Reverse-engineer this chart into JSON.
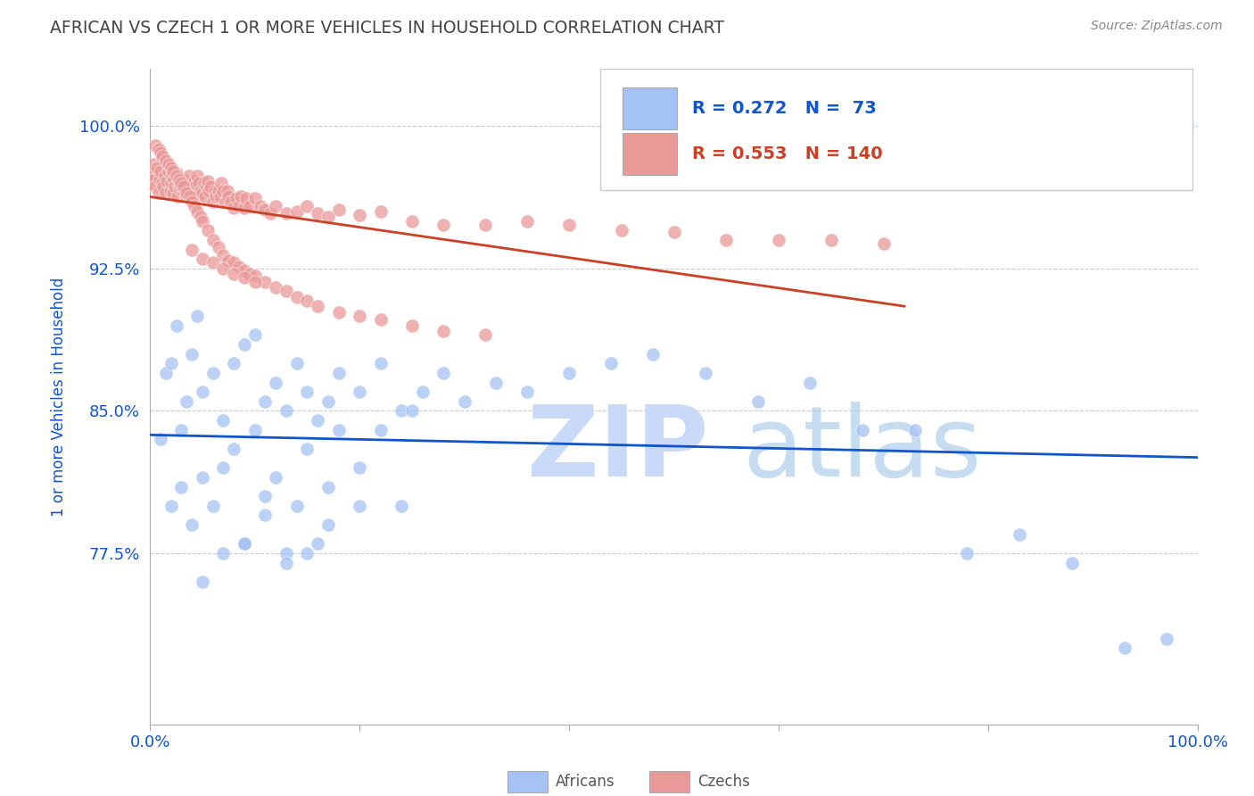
{
  "title": "AFRICAN VS CZECH 1 OR MORE VEHICLES IN HOUSEHOLD CORRELATION CHART",
  "source": "Source: ZipAtlas.com",
  "ylabel": "1 or more Vehicles in Household",
  "xlim": [
    0.0,
    1.0
  ],
  "ylim": [
    0.685,
    1.03
  ],
  "yticks": [
    0.775,
    0.85,
    0.925,
    1.0
  ],
  "ytick_labels": [
    "77.5%",
    "85.0%",
    "92.5%",
    "100.0%"
  ],
  "african_color": "#a4c2f4",
  "czech_color": "#ea9999",
  "african_R": 0.272,
  "african_N": 73,
  "czech_R": 0.553,
  "czech_N": 140,
  "african_line_color": "#1155cc",
  "czech_line_color": "#cc4125",
  "watermark_zip_color": "#c9daf8",
  "watermark_atlas_color": "#9fc5e8",
  "background_color": "#ffffff",
  "title_color": "#434343",
  "axis_label_color": "#1155cc",
  "tick_color": "#1155cc",
  "grid_color": "#cccccc",
  "africans_x": [
    0.01,
    0.015,
    0.02,
    0.025,
    0.03,
    0.035,
    0.04,
    0.045,
    0.05,
    0.06,
    0.07,
    0.08,
    0.09,
    0.1,
    0.11,
    0.12,
    0.13,
    0.14,
    0.15,
    0.16,
    0.17,
    0.18,
    0.2,
    0.22,
    0.24,
    0.26,
    0.28,
    0.3,
    0.33,
    0.36,
    0.4,
    0.44,
    0.48,
    0.53,
    0.58,
    0.63,
    0.68,
    0.73,
    0.78,
    0.83,
    0.88,
    0.93,
    0.97,
    0.99,
    0.02,
    0.03,
    0.04,
    0.05,
    0.06,
    0.07,
    0.08,
    0.09,
    0.1,
    0.11,
    0.12,
    0.13,
    0.14,
    0.15,
    0.16,
    0.17,
    0.18,
    0.2,
    0.22,
    0.24,
    0.05,
    0.07,
    0.09,
    0.11,
    0.13,
    0.15,
    0.17,
    0.2,
    0.25
  ],
  "africans_y": [
    0.835,
    0.87,
    0.875,
    0.895,
    0.84,
    0.855,
    0.88,
    0.9,
    0.86,
    0.87,
    0.845,
    0.875,
    0.885,
    0.89,
    0.855,
    0.865,
    0.85,
    0.875,
    0.86,
    0.845,
    0.855,
    0.87,
    0.86,
    0.875,
    0.85,
    0.86,
    0.87,
    0.855,
    0.865,
    0.86,
    0.87,
    0.875,
    0.88,
    0.87,
    0.855,
    0.865,
    0.84,
    0.84,
    0.775,
    0.785,
    0.77,
    0.725,
    0.73,
    1.0,
    0.8,
    0.81,
    0.79,
    0.815,
    0.8,
    0.82,
    0.83,
    0.78,
    0.84,
    0.805,
    0.815,
    0.775,
    0.8,
    0.83,
    0.78,
    0.81,
    0.84,
    0.82,
    0.84,
    0.8,
    0.76,
    0.775,
    0.78,
    0.795,
    0.77,
    0.775,
    0.79,
    0.8,
    0.85
  ],
  "czechs_x": [
    0.001,
    0.002,
    0.003,
    0.004,
    0.005,
    0.007,
    0.008,
    0.009,
    0.01,
    0.012,
    0.013,
    0.014,
    0.015,
    0.016,
    0.018,
    0.019,
    0.02,
    0.021,
    0.022,
    0.023,
    0.024,
    0.025,
    0.026,
    0.027,
    0.028,
    0.03,
    0.031,
    0.032,
    0.033,
    0.034,
    0.035,
    0.036,
    0.037,
    0.038,
    0.04,
    0.041,
    0.042,
    0.043,
    0.044,
    0.045,
    0.046,
    0.047,
    0.048,
    0.05,
    0.052,
    0.053,
    0.054,
    0.055,
    0.056,
    0.058,
    0.06,
    0.062,
    0.063,
    0.065,
    0.067,
    0.068,
    0.07,
    0.072,
    0.074,
    0.075,
    0.077,
    0.08,
    0.082,
    0.085,
    0.087,
    0.09,
    0.092,
    0.095,
    0.1,
    0.105,
    0.11,
    0.115,
    0.12,
    0.13,
    0.14,
    0.15,
    0.16,
    0.17,
    0.18,
    0.2,
    0.22,
    0.25,
    0.28,
    0.32,
    0.36,
    0.4,
    0.45,
    0.5,
    0.55,
    0.6,
    0.65,
    0.7,
    0.005,
    0.008,
    0.01,
    0.012,
    0.015,
    0.018,
    0.02,
    0.022,
    0.025,
    0.028,
    0.03,
    0.032,
    0.035,
    0.038,
    0.04,
    0.042,
    0.045,
    0.048,
    0.05,
    0.055,
    0.06,
    0.065,
    0.07,
    0.075,
    0.08,
    0.085,
    0.09,
    0.095,
    0.1,
    0.11,
    0.12,
    0.13,
    0.14,
    0.15,
    0.16,
    0.18,
    0.2,
    0.22,
    0.25,
    0.28,
    0.32,
    0.04,
    0.05,
    0.06,
    0.07,
    0.08,
    0.09,
    0.1
  ],
  "czechs_y": [
    0.97,
    0.975,
    0.98,
    0.972,
    0.968,
    0.978,
    0.965,
    0.972,
    0.976,
    0.97,
    0.968,
    0.974,
    0.965,
    0.971,
    0.976,
    0.966,
    0.97,
    0.974,
    0.965,
    0.972,
    0.968,
    0.975,
    0.963,
    0.97,
    0.967,
    0.968,
    0.972,
    0.965,
    0.971,
    0.966,
    0.963,
    0.969,
    0.974,
    0.966,
    0.968,
    0.963,
    0.971,
    0.966,
    0.969,
    0.974,
    0.963,
    0.97,
    0.966,
    0.965,
    0.97,
    0.963,
    0.968,
    0.971,
    0.966,
    0.968,
    0.96,
    0.966,
    0.963,
    0.966,
    0.963,
    0.97,
    0.966,
    0.96,
    0.966,
    0.963,
    0.96,
    0.957,
    0.962,
    0.958,
    0.963,
    0.957,
    0.962,
    0.958,
    0.962,
    0.958,
    0.956,
    0.954,
    0.958,
    0.954,
    0.955,
    0.958,
    0.954,
    0.952,
    0.956,
    0.953,
    0.955,
    0.95,
    0.948,
    0.948,
    0.95,
    0.948,
    0.945,
    0.944,
    0.94,
    0.94,
    0.94,
    0.938,
    0.99,
    0.988,
    0.986,
    0.984,
    0.982,
    0.98,
    0.978,
    0.976,
    0.974,
    0.972,
    0.97,
    0.968,
    0.965,
    0.963,
    0.96,
    0.958,
    0.955,
    0.952,
    0.95,
    0.945,
    0.94,
    0.936,
    0.932,
    0.929,
    0.928,
    0.926,
    0.924,
    0.922,
    0.921,
    0.918,
    0.915,
    0.913,
    0.91,
    0.908,
    0.905,
    0.902,
    0.9,
    0.898,
    0.895,
    0.892,
    0.89,
    0.935,
    0.93,
    0.928,
    0.925,
    0.922,
    0.92,
    0.918
  ]
}
